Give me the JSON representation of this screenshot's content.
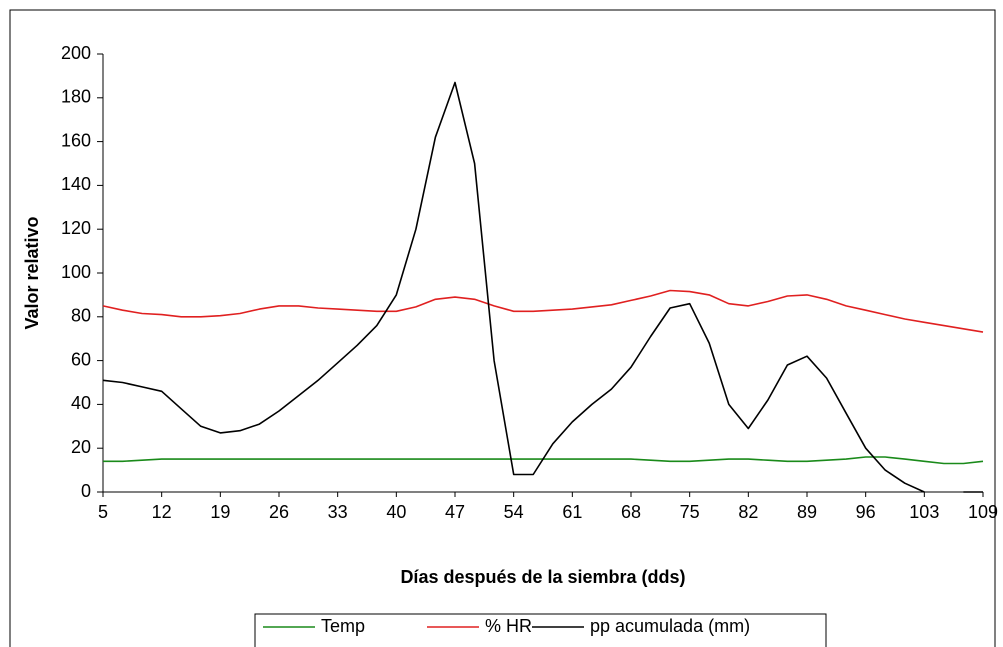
{
  "chart_data": {
    "type": "line",
    "xlabel": "Días después de la siembra (dds)",
    "ylabel": "Valor relativo",
    "categories": [
      "5",
      null,
      null,
      "12",
      null,
      null,
      "19",
      null,
      null,
      "26",
      null,
      null,
      "33",
      null,
      null,
      "40",
      null,
      null,
      "47",
      null,
      null,
      "54",
      null,
      null,
      "61",
      null,
      null,
      "68",
      null,
      null,
      "75",
      null,
      null,
      "82",
      null,
      null,
      "89",
      null,
      null,
      "96",
      null,
      null,
      "103",
      null,
      null,
      "109"
    ],
    "ylim": [
      0,
      200
    ],
    "yticks": [
      0,
      20,
      40,
      60,
      80,
      100,
      120,
      140,
      160,
      180,
      200
    ],
    "grid": false,
    "legend": "bottom",
    "series": [
      {
        "name": "Temp",
        "color": "#1a8a1a",
        "values": [
          14,
          14,
          14.5,
          15,
          15,
          15,
          15,
          15,
          15,
          15,
          15,
          15,
          15,
          15,
          15,
          15,
          15,
          15,
          15,
          15,
          15,
          15,
          15,
          15,
          15,
          15,
          15,
          15,
          14.5,
          14,
          14,
          14.5,
          15,
          15,
          14.5,
          14,
          14,
          14.5,
          15,
          16,
          16,
          15,
          14,
          13,
          13,
          14
        ]
      },
      {
        "name": "% HR",
        "color": "#e02020",
        "values": [
          85,
          83,
          81.5,
          81,
          80,
          80,
          80.5,
          81.5,
          83.5,
          85,
          85,
          84,
          83.5,
          83,
          82.5,
          82.5,
          84.5,
          88,
          89,
          88,
          85,
          82.5,
          82.5,
          83,
          83.5,
          84.5,
          85.5,
          87.5,
          89.5,
          92,
          91.5,
          90,
          86,
          85,
          87,
          89.5,
          90,
          88,
          85,
          83,
          81,
          79,
          77.5,
          76,
          74.5,
          73
        ]
      },
      {
        "name": "pp acumulada (mm)",
        "color": "#000000",
        "values": [
          51,
          50,
          48,
          46,
          38,
          30,
          27,
          28,
          31,
          37,
          44,
          51,
          59,
          67,
          76,
          90,
          120,
          162,
          187,
          150,
          60,
          8,
          8,
          22,
          32,
          40,
          47,
          57,
          71,
          84,
          86,
          68,
          40,
          29,
          42,
          58,
          62,
          52,
          36,
          20,
          10,
          4,
          0,
          null,
          0,
          0
        ]
      }
    ]
  }
}
